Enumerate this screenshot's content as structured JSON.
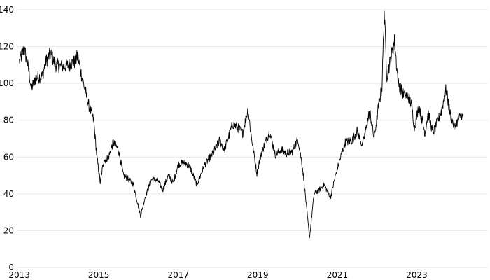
{
  "chart_data": {
    "type": "line",
    "title": "",
    "xlabel": "",
    "ylabel": "",
    "x_range": [
      "2012-12-15",
      "2024-10-15"
    ],
    "ylim": [
      0,
      140
    ],
    "grid": true,
    "colors": {
      "line": "#000000",
      "grid": "#e6e6e6",
      "background": "#ffffff"
    },
    "x_ticks": [
      {
        "date": "2013-01-01",
        "label": "2013"
      },
      {
        "date": "2015-01-01",
        "label": "2015"
      },
      {
        "date": "2017-01-01",
        "label": "2017"
      },
      {
        "date": "2019-01-01",
        "label": "2019"
      },
      {
        "date": "2021-01-01",
        "label": "2021"
      },
      {
        "date": "2023-01-01",
        "label": "2023"
      }
    ],
    "y_ticks": [
      {
        "value": 0,
        "label": "0"
      },
      {
        "value": 20,
        "label": "20"
      },
      {
        "value": 40,
        "label": "40"
      },
      {
        "value": 60,
        "label": "60"
      },
      {
        "value": 80,
        "label": "80"
      },
      {
        "value": 100,
        "label": "100"
      },
      {
        "value": 120,
        "label": "120"
      },
      {
        "value": 140,
        "label": "140"
      }
    ],
    "series": [
      {
        "points": [
          [
            "2013-01-01",
            112
          ],
          [
            "2013-02-15",
            119
          ],
          [
            "2013-04-01",
            106
          ],
          [
            "2013-04-20",
            97
          ],
          [
            "2013-06-01",
            103
          ],
          [
            "2013-08-01",
            104
          ],
          [
            "2013-09-01",
            112
          ],
          [
            "2013-10-15",
            116
          ],
          [
            "2013-12-01",
            110
          ],
          [
            "2014-02-01",
            109
          ],
          [
            "2014-04-01",
            110
          ],
          [
            "2014-06-01",
            112
          ],
          [
            "2014-06-20",
            115
          ],
          [
            "2014-08-01",
            103
          ],
          [
            "2014-10-01",
            88
          ],
          [
            "2014-11-15",
            80
          ],
          [
            "2014-12-15",
            60
          ],
          [
            "2015-01-15",
            46
          ],
          [
            "2015-02-15",
            58
          ],
          [
            "2015-04-01",
            60
          ],
          [
            "2015-05-15",
            68
          ],
          [
            "2015-07-01",
            64
          ],
          [
            "2015-08-15",
            50
          ],
          [
            "2015-10-01",
            48
          ],
          [
            "2015-11-15",
            45
          ],
          [
            "2016-01-20",
            28
          ],
          [
            "2016-03-01",
            38
          ],
          [
            "2016-05-01",
            48
          ],
          [
            "2016-07-01",
            47
          ],
          [
            "2016-08-10",
            42
          ],
          [
            "2016-10-01",
            50
          ],
          [
            "2016-11-15",
            46
          ],
          [
            "2017-01-01",
            56
          ],
          [
            "2017-03-01",
            57
          ],
          [
            "2017-04-15",
            55
          ],
          [
            "2017-06-20",
            45
          ],
          [
            "2017-09-01",
            56
          ],
          [
            "2017-11-15",
            62
          ],
          [
            "2018-01-15",
            69
          ],
          [
            "2018-03-01",
            64
          ],
          [
            "2018-05-15",
            78
          ],
          [
            "2018-07-01",
            76
          ],
          [
            "2018-08-15",
            73
          ],
          [
            "2018-10-03",
            86
          ],
          [
            "2018-11-01",
            72
          ],
          [
            "2018-12-24",
            51
          ],
          [
            "2019-02-01",
            62
          ],
          [
            "2019-04-20",
            74
          ],
          [
            "2019-06-10",
            61
          ],
          [
            "2019-08-01",
            64
          ],
          [
            "2019-09-20",
            62
          ],
          [
            "2019-11-15",
            63
          ],
          [
            "2020-01-05",
            70
          ],
          [
            "2020-02-15",
            55
          ],
          [
            "2020-03-15",
            38
          ],
          [
            "2020-04-20",
            16
          ],
          [
            "2020-06-01",
            40
          ],
          [
            "2020-07-15",
            42
          ],
          [
            "2020-09-01",
            45
          ],
          [
            "2020-10-30",
            38
          ],
          [
            "2020-12-15",
            50
          ],
          [
            "2021-02-15",
            63
          ],
          [
            "2021-03-15",
            68
          ],
          [
            "2021-05-15",
            69
          ],
          [
            "2021-07-01",
            74
          ],
          [
            "2021-08-20",
            66
          ],
          [
            "2021-10-25",
            85
          ],
          [
            "2021-12-05",
            70
          ],
          [
            "2022-01-15",
            88
          ],
          [
            "2022-02-15",
            98
          ],
          [
            "2022-03-08",
            139
          ],
          [
            "2022-04-01",
            104
          ],
          [
            "2022-05-01",
            112
          ],
          [
            "2022-06-10",
            123
          ],
          [
            "2022-07-15",
            100
          ],
          [
            "2022-09-01",
            94
          ],
          [
            "2022-10-15",
            93
          ],
          [
            "2022-11-15",
            88
          ],
          [
            "2022-12-10",
            76
          ],
          [
            "2023-01-20",
            88
          ],
          [
            "2023-03-17",
            73
          ],
          [
            "2023-04-15",
            84
          ],
          [
            "2023-05-30",
            73
          ],
          [
            "2023-07-15",
            80
          ],
          [
            "2023-08-15",
            85
          ],
          [
            "2023-09-27",
            97
          ],
          [
            "2023-11-01",
            84
          ],
          [
            "2023-12-12",
            76
          ],
          [
            "2024-01-15",
            80
          ],
          [
            "2024-02-15",
            83
          ],
          [
            "2024-03-01",
            81
          ]
        ]
      }
    ]
  }
}
